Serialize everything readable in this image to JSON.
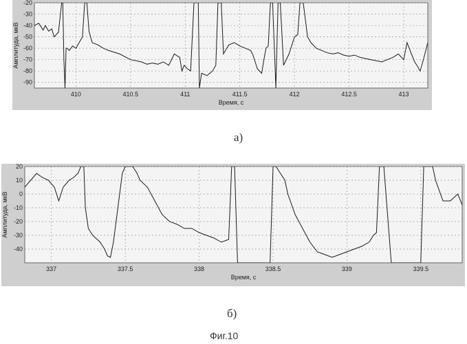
{
  "chart_data": [
    {
      "type": "line",
      "ylabel": "Амплитуда, мкВ",
      "xlabel": "Время, с",
      "xlim": [
        409.62,
        413.22
      ],
      "ylim": [
        -95,
        -20
      ],
      "xticks": [
        410,
        410.5,
        411,
        411.5,
        412,
        412.5,
        413
      ],
      "xtick_labels": [
        "410",
        "410.5",
        "411",
        "411.5",
        "412",
        "412.5",
        "413"
      ],
      "yticks": [
        -20,
        -30,
        -40,
        -50,
        -60,
        -70,
        -80,
        -90
      ],
      "ytick_labels": [
        "-20",
        "-30",
        "-40",
        "-50",
        "-60",
        "-70",
        "-80",
        "-90"
      ],
      "grid": true,
      "series": [
        {
          "x": [
            409.62,
            409.66,
            409.7,
            409.72,
            409.75,
            409.78,
            409.8,
            409.84,
            409.87,
            409.88,
            409.89,
            409.9,
            409.91,
            409.92,
            409.94,
            409.97,
            410.0,
            410.03,
            410.06,
            410.08,
            410.1,
            410.12,
            410.14,
            410.15,
            410.2,
            410.25,
            410.3,
            410.4,
            410.5,
            410.6,
            410.65,
            410.7,
            410.75,
            410.8,
            410.85,
            410.9,
            410.95,
            410.97,
            410.99,
            411.02,
            411.05,
            411.08,
            411.12,
            411.13,
            411.15,
            411.2,
            411.25,
            411.28,
            411.3,
            411.33,
            411.35,
            411.38,
            411.4,
            411.45,
            411.5,
            411.55,
            411.6,
            411.62,
            411.64,
            411.66,
            411.7,
            411.72,
            411.74,
            411.76,
            411.78,
            411.8,
            411.83,
            411.85,
            411.87,
            411.9,
            411.95,
            412.0,
            412.03,
            412.05,
            412.08,
            412.12,
            412.15,
            412.2,
            412.25,
            412.3,
            412.35,
            412.4,
            412.45,
            412.5,
            412.55,
            412.6,
            412.7,
            412.8,
            412.85,
            412.9,
            412.95,
            413.0,
            413.03,
            413.05,
            413.07,
            413.1,
            413.12,
            413.15,
            413.18,
            413.22
          ],
          "y": [
            -40,
            -38,
            -44,
            -40,
            -45,
            -43,
            -50,
            -46,
            -20,
            -20,
            -70,
            -95,
            -60,
            -60,
            -62,
            -58,
            -60,
            -55,
            -50,
            -20,
            -20,
            -45,
            -52,
            -55,
            -57,
            -60,
            -62,
            -65,
            -70,
            -72,
            -74,
            -73,
            -74,
            -72,
            -75,
            -65,
            -68,
            -80,
            -75,
            -78,
            -80,
            -20,
            -20,
            -95,
            -82,
            -84,
            -80,
            -75,
            -20,
            -20,
            -65,
            -60,
            -57,
            -55,
            -58,
            -60,
            -62,
            -66,
            -72,
            -78,
            -82,
            -70,
            -60,
            -58,
            -20,
            -20,
            -95,
            -20,
            -20,
            -75,
            -65,
            -50,
            -48,
            -20,
            -20,
            -50,
            -55,
            -60,
            -62,
            -64,
            -65,
            -64,
            -66,
            -67,
            -66,
            -68,
            -70,
            -72,
            -70,
            -68,
            -65,
            -70,
            -55,
            -60,
            -65,
            -72,
            -75,
            -80,
            -70,
            -55
          ]
        }
      ]
    },
    {
      "type": "line",
      "ylabel": "Амплитуда, мкВ",
      "xlabel": "Время, с",
      "xlim": [
        336.82,
        339.78
      ],
      "ylim": [
        -50,
        20
      ],
      "xticks": [
        337,
        337.5,
        338,
        338.5,
        339,
        339.5
      ],
      "xtick_labels": [
        "337",
        "337.5",
        "338",
        "338.5",
        "339",
        "339.5"
      ],
      "yticks": [
        20,
        10,
        0,
        -10,
        -20,
        -30,
        -40
      ],
      "ytick_labels": [
        "20",
        "10",
        "0",
        "-10",
        "-20",
        "-30",
        "-40"
      ],
      "grid": true,
      "series": [
        {
          "x": [
            336.82,
            336.86,
            336.9,
            336.94,
            336.98,
            337.02,
            337.05,
            337.08,
            337.12,
            337.15,
            337.18,
            337.2,
            337.22,
            337.23,
            337.25,
            337.28,
            337.3,
            337.33,
            337.36,
            337.38,
            337.4,
            337.42,
            337.45,
            337.48,
            337.5,
            337.52,
            337.55,
            337.58,
            337.6,
            337.65,
            337.7,
            337.75,
            337.8,
            337.85,
            337.9,
            337.95,
            338.0,
            338.05,
            338.1,
            338.15,
            338.2,
            338.22,
            338.24,
            338.26,
            338.3,
            338.35,
            338.4,
            338.45,
            338.48,
            338.5,
            338.52,
            338.55,
            338.58,
            338.6,
            338.65,
            338.7,
            338.75,
            338.8,
            338.85,
            338.9,
            338.95,
            339.0,
            339.05,
            339.1,
            339.15,
            339.18,
            339.2,
            339.22,
            339.25,
            339.3,
            339.35,
            339.4,
            339.45,
            339.5,
            339.52,
            339.55,
            339.58,
            339.6,
            339.65,
            339.7,
            339.75,
            339.78
          ],
          "y": [
            5,
            10,
            15,
            12,
            10,
            5,
            -5,
            5,
            10,
            12,
            15,
            20,
            20,
            -10,
            -25,
            -30,
            -32,
            -35,
            -40,
            -45,
            -46,
            -35,
            -10,
            15,
            20,
            20,
            20,
            15,
            10,
            5,
            -5,
            -15,
            -20,
            -22,
            -25,
            -25,
            -28,
            -30,
            -32,
            -35,
            -33,
            20,
            20,
            -50,
            -50,
            -50,
            -50,
            -50,
            -50,
            20,
            20,
            15,
            10,
            0,
            -15,
            -25,
            -35,
            -42,
            -44,
            -46,
            -44,
            -42,
            -40,
            -38,
            -35,
            -30,
            -28,
            20,
            20,
            -50,
            -50,
            -50,
            -50,
            -50,
            20,
            20,
            20,
            10,
            -5,
            -5,
            0,
            -8
          ]
        }
      ]
    }
  ],
  "captions": {
    "a": "a)",
    "b": "б)",
    "figure": "Фиг.10"
  },
  "colors": {
    "plot_bg": "#f4f4f4",
    "panel_bg": "#cfcfcf",
    "line": "#1a1a1a",
    "grid": "#9a9a9a"
  }
}
